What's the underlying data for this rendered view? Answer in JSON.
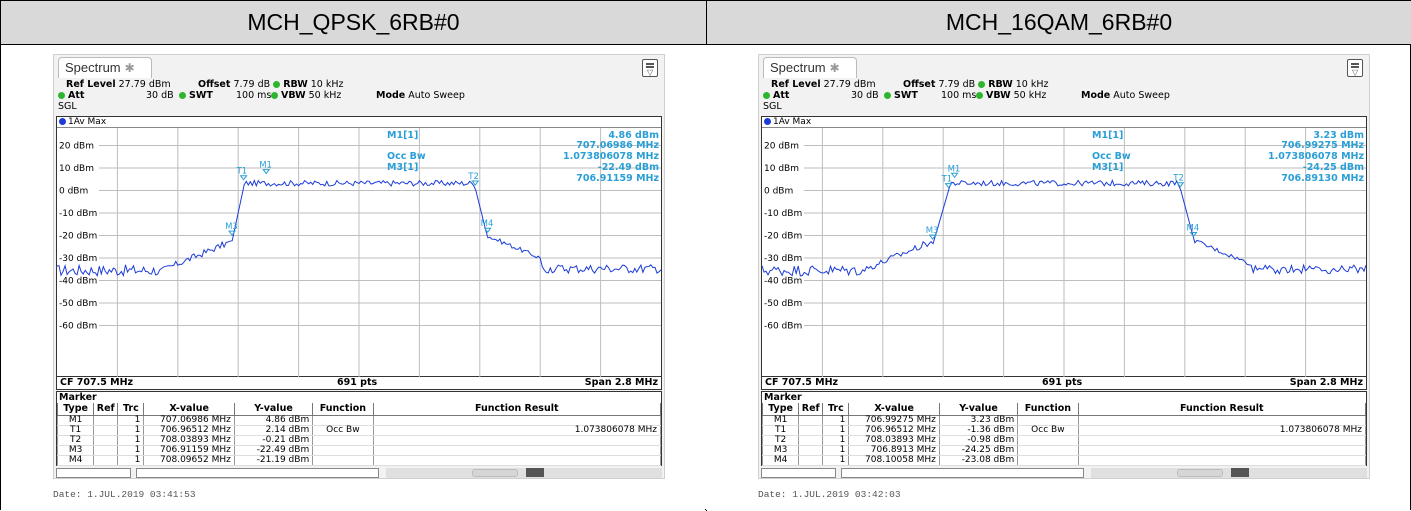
{
  "headers": [
    "MCH_QPSK_6RB#0",
    "MCH_16QAM_6RB#0"
  ],
  "panels": [
    {
      "tab": "Spectrum",
      "params": {
        "ref_level_label": "Ref Level",
        "ref_level": "27.79 dBm",
        "offset_label": "Offset",
        "offset": "7.79 dB",
        "rbw_label": "RBW",
        "rbw": "10 kHz",
        "att_label": "Att",
        "att": "30 dB",
        "swt_label": "SWT",
        "swt": "100 ms",
        "vbw_label": "VBW",
        "vbw": "50 kHz",
        "mode_label": "Mode",
        "mode": "Auto Sweep",
        "sgl": "SGL"
      },
      "trace_label": "1Av Max",
      "readout": {
        "m1_label": "M1[1]",
        "m1_level": "4.86 dBm",
        "m1_freq": "707.06986 MHz",
        "occ_label": "Occ Bw",
        "occ_value": "1.073806078 MHz",
        "m3_label": "M3[1]",
        "m3_level": "-22.49 dBm",
        "m3_freq": "706.91159 MHz"
      },
      "y_ticks": [
        "20 dBm",
        "10 dBm",
        "0 dBm",
        "-10 dBm",
        "-20 dBm",
        "-30 dBm",
        "-40 dBm",
        "-50 dBm",
        "-60 dBm"
      ],
      "footer": {
        "cf": "CF 707.5 MHz",
        "pts": "691 pts",
        "span": "Span 2.8 MHz"
      },
      "marker_title": "Marker",
      "columns": [
        "Type",
        "Ref",
        "Trc",
        "X-value",
        "Y-value",
        "Function",
        "Function Result"
      ],
      "rows": [
        {
          "type": "M1",
          "ref": "",
          "trc": "1",
          "x": "707.06986 MHz",
          "y": "4.86 dBm",
          "func": "",
          "result": ""
        },
        {
          "type": "T1",
          "ref": "",
          "trc": "1",
          "x": "706.96512 MHz",
          "y": "2.14 dBm",
          "func": "Occ Bw",
          "result": "1.073806078 MHz"
        },
        {
          "type": "T2",
          "ref": "",
          "trc": "1",
          "x": "708.03893 MHz",
          "y": "-0.21 dBm",
          "func": "",
          "result": ""
        },
        {
          "type": "M3",
          "ref": "",
          "trc": "1",
          "x": "706.91159 MHz",
          "y": "-22.49 dBm",
          "func": "",
          "result": ""
        },
        {
          "type": "M4",
          "ref": "",
          "trc": "1",
          "x": "708.09652 MHz",
          "y": "-21.19 dBm",
          "func": "",
          "result": ""
        }
      ],
      "date": "Date: 1.JUL.2019  03:41:53",
      "trace_mhz": {
        "t1": 706.96512,
        "t2": 708.03893,
        "m1": 707.06986,
        "m3": 706.91159,
        "m4": 708.09652,
        "m1_dbm": 4.86,
        "t1_dbm": 2.14,
        "t2_dbm": -0.21,
        "m3_dbm": -22.49,
        "m4_dbm": -21.19
      }
    },
    {
      "tab": "Spectrum",
      "params": {
        "ref_level_label": "Ref Level",
        "ref_level": "27.79 dBm",
        "offset_label": "Offset",
        "offset": "7.79 dB",
        "rbw_label": "RBW",
        "rbw": "10 kHz",
        "att_label": "Att",
        "att": "30 dB",
        "swt_label": "SWT",
        "swt": "100 ms",
        "vbw_label": "VBW",
        "vbw": "50 kHz",
        "mode_label": "Mode",
        "mode": "Auto Sweep",
        "sgl": "SGL"
      },
      "trace_label": "1Av Max",
      "readout": {
        "m1_label": "M1[1]",
        "m1_level": "3.23 dBm",
        "m1_freq": "706.99275 MHz",
        "occ_label": "Occ Bw",
        "occ_value": "1.073806078 MHz",
        "m3_label": "M3[1]",
        "m3_level": "-24.25 dBm",
        "m3_freq": "706.89130 MHz"
      },
      "y_ticks": [
        "20 dBm",
        "10 dBm",
        "0 dBm",
        "-10 dBm",
        "-20 dBm",
        "-30 dBm",
        "-40 dBm",
        "-50 dBm",
        "-60 dBm"
      ],
      "footer": {
        "cf": "CF 707.5 MHz",
        "pts": "691 pts",
        "span": "Span 2.8 MHz"
      },
      "marker_title": "Marker",
      "columns": [
        "Type",
        "Ref",
        "Trc",
        "X-value",
        "Y-value",
        "Function",
        "Function Result"
      ],
      "rows": [
        {
          "type": "M1",
          "ref": "",
          "trc": "1",
          "x": "706.99275 MHz",
          "y": "3.23 dBm",
          "func": "",
          "result": ""
        },
        {
          "type": "T1",
          "ref": "",
          "trc": "1",
          "x": "706.96512 MHz",
          "y": "-1.36 dBm",
          "func": "Occ Bw",
          "result": "1.073806078 MHz"
        },
        {
          "type": "T2",
          "ref": "",
          "trc": "1",
          "x": "708.03893 MHz",
          "y": "-0.98 dBm",
          "func": "",
          "result": ""
        },
        {
          "type": "M3",
          "ref": "",
          "trc": "1",
          "x": "706.8913 MHz",
          "y": "-24.25 dBm",
          "func": "",
          "result": ""
        },
        {
          "type": "M4",
          "ref": "",
          "trc": "1",
          "x": "708.10058 MHz",
          "y": "-23.08 dBm",
          "func": "",
          "result": ""
        }
      ],
      "date": "Date: 1.JUL.2019  03:42:03",
      "trace_mhz": {
        "t1": 706.96512,
        "t2": 708.03893,
        "m1": 706.99275,
        "m3": 706.8913,
        "m4": 708.10058,
        "m1_dbm": 3.23,
        "t1_dbm": -1.36,
        "t2_dbm": -0.98,
        "m3_dbm": -24.25,
        "m4_dbm": -23.08
      }
    }
  ],
  "colors": {
    "trace": "#1c3cd8",
    "marker": "#2a9fd6",
    "green_dot": "#2db52d",
    "header_bg": "#d9d9d9"
  }
}
